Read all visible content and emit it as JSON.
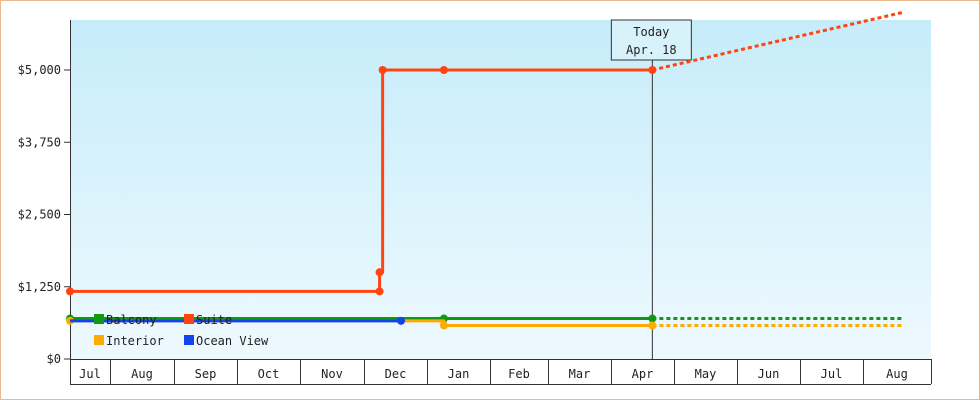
{
  "chart_data": {
    "type": "line",
    "step": true,
    "x_categories": [
      "Jul",
      "Aug",
      "Sep",
      "Oct",
      "Nov",
      "Dec",
      "Jan",
      "Feb",
      "Mar",
      "Apr",
      "May",
      "Jun",
      "Jul",
      "Aug"
    ],
    "y_ticks": [
      "$0",
      "$1,250",
      "$2,500",
      "$3,750",
      "$5,000"
    ],
    "y_tick_values": [
      0,
      1250,
      2500,
      3750,
      5000
    ],
    "ylim": [
      0,
      6000
    ],
    "xlim": [
      0,
      13.6
    ],
    "grid": false,
    "legend_position": "bottom-left",
    "background": {
      "top": "#c6ecfa",
      "bottom": "#eef9fe"
    },
    "today": {
      "x": 9.5,
      "line1": "Today",
      "line2": "Apr. 18"
    },
    "series": [
      {
        "name": "Balcony",
        "color": "#119911",
        "points": [
          [
            0,
            700
          ],
          [
            6.1,
            700
          ],
          [
            9.5,
            700
          ]
        ],
        "markers": [
          [
            0,
            700
          ],
          [
            6.1,
            700
          ],
          [
            9.5,
            700
          ]
        ],
        "projection": [
          [
            9.5,
            700
          ],
          [
            13.6,
            700
          ]
        ]
      },
      {
        "name": "Suite",
        "color": "#ff4411",
        "points": [
          [
            0,
            1170
          ],
          [
            5.05,
            1170
          ],
          [
            5.05,
            1500
          ],
          [
            5.1,
            1500
          ],
          [
            5.1,
            5000
          ],
          [
            6.1,
            5000
          ],
          [
            9.5,
            5000
          ]
        ],
        "markers": [
          [
            0,
            1170
          ],
          [
            5.05,
            1170
          ],
          [
            5.05,
            1500
          ],
          [
            5.1,
            5000
          ],
          [
            6.1,
            5000
          ],
          [
            9.5,
            5000
          ]
        ],
        "projection": [
          [
            9.5,
            5000
          ],
          [
            13.6,
            6000
          ]
        ]
      },
      {
        "name": "Interior",
        "color": "#ffaa00",
        "points": [
          [
            0,
            660
          ],
          [
            6.1,
            660
          ],
          [
            6.1,
            580
          ],
          [
            9.5,
            580
          ]
        ],
        "markers": [
          [
            0,
            660
          ],
          [
            6.1,
            580
          ],
          [
            9.5,
            580
          ]
        ],
        "projection": [
          [
            9.5,
            580
          ],
          [
            13.6,
            580
          ]
        ]
      },
      {
        "name": "Ocean View",
        "color": "#1144ee",
        "points": [
          [
            0,
            660
          ],
          [
            5.4,
            660
          ]
        ],
        "markers": [
          [
            5.4,
            660
          ]
        ],
        "projection": []
      }
    ]
  }
}
